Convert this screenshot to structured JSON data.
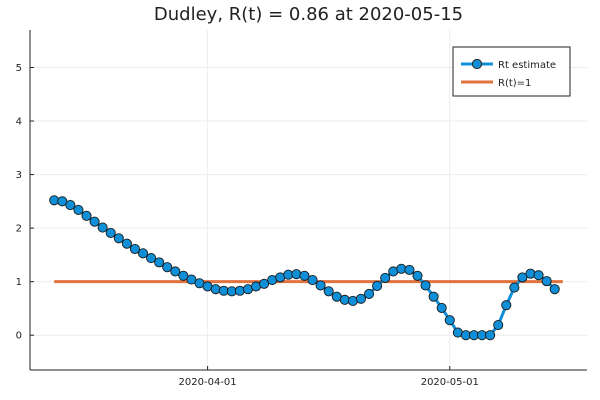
{
  "chart_data": {
    "type": "line",
    "title": "Dudley, R(t) = 0.86 at 2020-05-15",
    "xlabel": "",
    "ylabel": "",
    "x_start": "2020-03-13",
    "x_end": "2020-05-15",
    "xlim": [
      "2020-03-10",
      "2020-05-18"
    ],
    "ylim": [
      -0.65,
      5.7
    ],
    "yticks": [
      0,
      1,
      2,
      3,
      4,
      5
    ],
    "xticks": [
      "2020-04-01",
      "2020-05-01"
    ],
    "grid": true,
    "legend_position": "top-right",
    "series": [
      {
        "name": "Rt estimate",
        "color": "#0f8fd8",
        "marker": "circle",
        "values": [
          2.52,
          2.5,
          2.43,
          2.34,
          2.23,
          2.12,
          2.01,
          1.91,
          1.81,
          1.71,
          1.61,
          1.53,
          1.44,
          1.36,
          1.27,
          1.19,
          1.11,
          1.04,
          0.97,
          0.91,
          0.86,
          0.83,
          0.82,
          0.83,
          0.86,
          0.91,
          0.96,
          1.03,
          1.08,
          1.13,
          1.14,
          1.11,
          1.03,
          0.93,
          0.82,
          0.72,
          0.66,
          0.64,
          0.68,
          0.77,
          0.92,
          1.07,
          1.19,
          1.24,
          1.22,
          1.11,
          0.93,
          0.72,
          0.51,
          0.28,
          0.05,
          0.0,
          0.0,
          0.0,
          0.0,
          0.19,
          0.56,
          0.89,
          1.08,
          1.15,
          1.12,
          1.01,
          0.86
        ]
      },
      {
        "name": "R(t)=1",
        "color": "#e0733e",
        "marker": "none",
        "values": [
          1,
          1
        ]
      }
    ]
  }
}
